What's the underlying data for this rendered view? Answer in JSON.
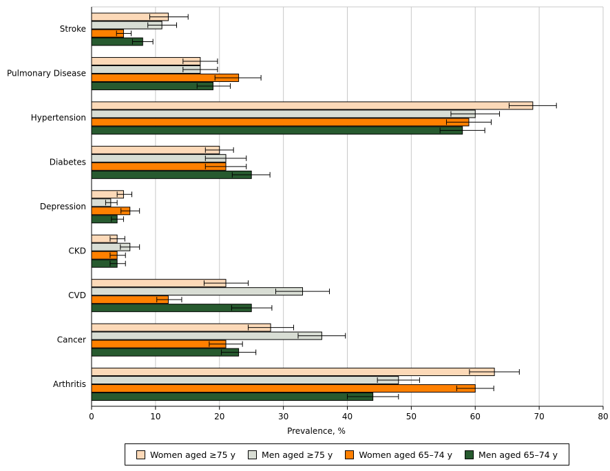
{
  "chart_data": {
    "type": "bar",
    "orientation": "horizontal",
    "xlabel": "Prevalence, %",
    "xlim": [
      0,
      80
    ],
    "xticks": [
      0,
      10,
      20,
      30,
      40,
      50,
      60,
      70,
      80
    ],
    "grid": true,
    "legend_placement": "bottom",
    "categories": [
      "Stroke",
      "Pulmonary Disease",
      "Hypertension",
      "Diabetes",
      "Depression",
      "CKD",
      "CVD",
      "Cancer",
      "Arthritis"
    ],
    "series": [
      {
        "name": "Women aged ≥75 y",
        "color": "#fcd9b8",
        "values": [
          12,
          17,
          69,
          20,
          5,
          4,
          21,
          28,
          63
        ],
        "ci": [
          [
            9.1,
            15.1
          ],
          [
            14.3,
            19.7
          ],
          [
            65.3,
            72.7
          ],
          [
            17.8,
            22.2
          ],
          [
            4.0,
            6.3
          ],
          [
            2.9,
            5.2
          ],
          [
            17.6,
            24.5
          ],
          [
            24.5,
            31.6
          ],
          [
            59.1,
            66.9
          ]
        ]
      },
      {
        "name": "Men aged ≥75 y",
        "color": "#d8ddd4",
        "values": [
          11,
          17,
          60,
          21,
          3,
          6,
          33,
          36,
          48
        ],
        "ci": [
          [
            8.8,
            13.3
          ],
          [
            14.3,
            19.7
          ],
          [
            56.2,
            63.8
          ],
          [
            17.8,
            24.2
          ],
          [
            2.2,
            4.0
          ],
          [
            4.5,
            7.5
          ],
          [
            28.8,
            37.2
          ],
          [
            32.3,
            39.7
          ],
          [
            44.7,
            51.3
          ]
        ]
      },
      {
        "name": "Women aged 65–74 y",
        "color": "#ff8000",
        "values": [
          5,
          23,
          59,
          21,
          6,
          4,
          12,
          21,
          60
        ],
        "ci": [
          [
            3.9,
            6.2
          ],
          [
            19.3,
            26.5
          ],
          [
            55.5,
            62.5
          ],
          [
            17.8,
            24.2
          ],
          [
            4.6,
            7.5
          ],
          [
            2.9,
            5.3
          ],
          [
            10.2,
            14.1
          ],
          [
            18.4,
            23.6
          ],
          [
            57.1,
            62.9
          ]
        ]
      },
      {
        "name": "Men aged 65–74 y",
        "color": "#275a2f",
        "values": [
          8,
          19,
          58,
          25,
          4,
          4,
          25,
          23,
          44
        ],
        "ci": [
          [
            6.4,
            9.6
          ],
          [
            16.5,
            21.7
          ],
          [
            54.5,
            61.5
          ],
          [
            22.0,
            27.9
          ],
          [
            3.1,
            5.0
          ],
          [
            2.9,
            5.3
          ],
          [
            21.9,
            28.2
          ],
          [
            20.3,
            25.7
          ],
          [
            40.0,
            48.0
          ]
        ]
      }
    ]
  }
}
